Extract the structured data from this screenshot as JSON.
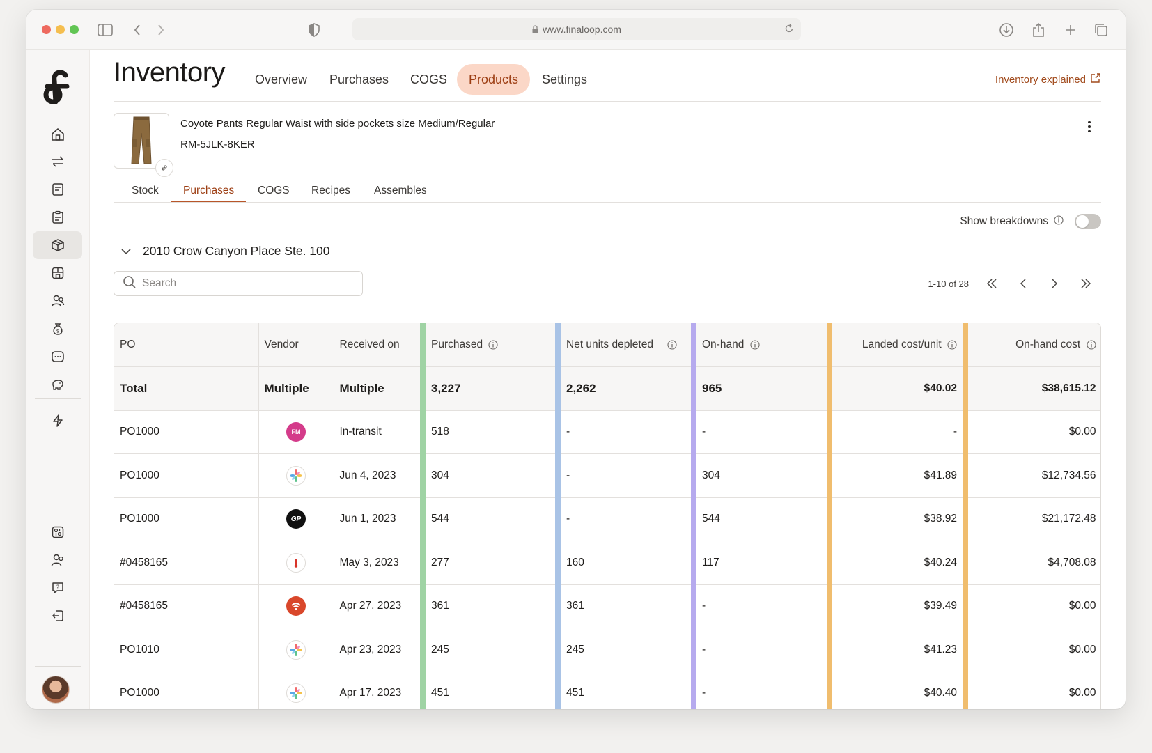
{
  "browser": {
    "url": "www.finaloop.com"
  },
  "header": {
    "title": "Inventory",
    "tabs": [
      {
        "label": "Overview",
        "active": false
      },
      {
        "label": "Purchases",
        "active": false
      },
      {
        "label": "COGS",
        "active": false
      },
      {
        "label": "Products",
        "active": true
      },
      {
        "label": "Settings",
        "active": false
      }
    ],
    "help_link": "Inventory explained"
  },
  "product": {
    "name": "Coyote Pants Regular Waist with side pockets size Medium/Regular",
    "sku": "RM-5JLK-8KER",
    "tabs": [
      {
        "label": "Stock",
        "active": false
      },
      {
        "label": "Purchases",
        "active": true
      },
      {
        "label": "COGS",
        "active": false
      },
      {
        "label": "Recipes",
        "active": false
      },
      {
        "label": "Assembles",
        "active": false
      }
    ]
  },
  "controls": {
    "breakdowns_label": "Show breakdowns",
    "breakdowns_on": false,
    "location": "2010 Crow Canyon Place Ste. 100",
    "search_placeholder": "Search",
    "pagination": "1-10 of 28"
  },
  "table": {
    "columns": [
      "PO",
      "Vendor",
      "Received on",
      "Purchased",
      "Net units depleted",
      "On-hand",
      "Landed cost/unit",
      "On-hand cost"
    ],
    "total": {
      "po": "Total",
      "vendor": "Multiple",
      "received": "Multiple",
      "purchased": "3,227",
      "depleted": "2,262",
      "onhand": "965",
      "landed": "$40.02",
      "onhand_cost": "$38,615.12"
    },
    "rows": [
      {
        "po": "PO1000",
        "vendor_logo": "FM",
        "received": "In-transit",
        "purchased": "518",
        "depleted": "-",
        "onhand": "-",
        "landed": "-",
        "onhand_cost": "$0.00"
      },
      {
        "po": "PO1000",
        "vendor_logo": "",
        "received": "Jun 4, 2023",
        "purchased": "304",
        "depleted": "-",
        "onhand": "304",
        "landed": "$41.89",
        "onhand_cost": "$12,734.56"
      },
      {
        "po": "PO1000",
        "vendor_logo": "GP",
        "received": "Jun 1, 2023",
        "purchased": "544",
        "depleted": "-",
        "onhand": "544",
        "landed": "$38.92",
        "onhand_cost": "$21,172.48"
      },
      {
        "po": "#0458165",
        "vendor_logo": "",
        "received": "May 3, 2023",
        "purchased": "277",
        "depleted": "160",
        "onhand": "117",
        "landed": "$40.24",
        "onhand_cost": "$4,708.08"
      },
      {
        "po": "#0458165",
        "vendor_logo": "",
        "received": "Apr 27, 2023",
        "purchased": "361",
        "depleted": "361",
        "onhand": "-",
        "landed": "$39.49",
        "onhand_cost": "$0.00"
      },
      {
        "po": "PO1010",
        "vendor_logo": "",
        "received": "Apr 23, 2023",
        "purchased": "245",
        "depleted": "245",
        "onhand": "-",
        "landed": "$41.23",
        "onhand_cost": "$0.00"
      },
      {
        "po": "PO1000",
        "vendor_logo": "",
        "received": "Apr 17, 2023",
        "purchased": "451",
        "depleted": "451",
        "onhand": "-",
        "landed": "$40.40",
        "onhand_cost": "$0.00"
      },
      {
        "po": "",
        "vendor_logo": "",
        "received": "",
        "purchased": "",
        "depleted": "",
        "onhand": "",
        "landed": "",
        "onhand_cost": ""
      }
    ]
  },
  "colors": {
    "accent": "#9c3d12",
    "accent_bg": "#fbd7c7",
    "purchased_bar": "#9fd3a4",
    "depleted_bar": "#a9c3e6",
    "onhand_bar": "#b6aaee",
    "cost_bar": "#f0bd6e"
  }
}
